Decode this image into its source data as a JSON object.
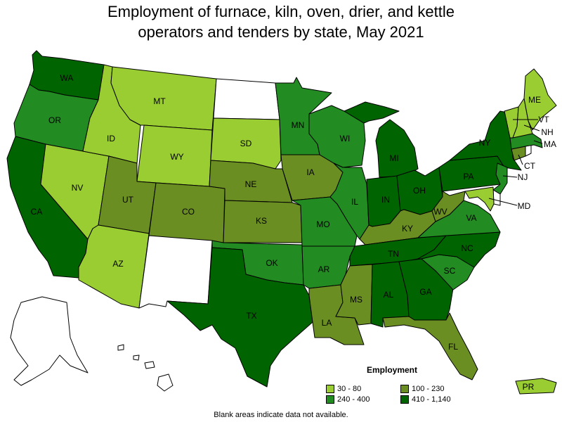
{
  "title_line1": "Employment of furnace, kiln, oven, drier, and kettle",
  "title_line2": "operators and tenders by state, May 2021",
  "colors": {
    "c1": "#9acd32",
    "c2": "#228b22",
    "c3": "#6b8e23",
    "c4": "#006400",
    "nodata": "#ffffff"
  },
  "legend": {
    "title": "Employment",
    "items": [
      {
        "label": "30 - 80",
        "color": "#9acd32"
      },
      {
        "label": "240 - 400",
        "color": "#228b22"
      },
      {
        "label": "100 - 230",
        "color": "#6b8e23"
      },
      {
        "label": "410 - 1,140",
        "color": "#006400"
      }
    ]
  },
  "footnote": "Blank areas indicate data not available.",
  "states": {
    "WA": "410 - 1,140",
    "OR": "240 - 400",
    "CA": "410 - 1,140",
    "NV": "30 - 80",
    "ID": "30 - 80",
    "MT": "30 - 80",
    "WY": "30 - 80",
    "UT": "100 - 230",
    "CO": "100 - 230",
    "AZ": "30 - 80",
    "NM": "",
    "ND": "",
    "SD": "30 - 80",
    "NE": "100 - 230",
    "KS": "100 - 230",
    "OK": "240 - 400",
    "TX": "410 - 1,140",
    "MN": "240 - 400",
    "IA": "100 - 230",
    "MO": "240 - 400",
    "AR": "240 - 400",
    "LA": "100 - 230",
    "WI": "240 - 400",
    "IL": "240 - 400",
    "MI": "410 - 1,140",
    "IN": "410 - 1,140",
    "OH": "410 - 1,140",
    "KY": "100 - 230",
    "TN": "410 - 1,140",
    "MS": "100 - 230",
    "AL": "410 - 1,140",
    "GA": "410 - 1,140",
    "FL": "100 - 230",
    "SC": "240 - 400",
    "NC": "410 - 1,140",
    "VA": "240 - 400",
    "WV": "100 - 230",
    "PA": "410 - 1,140",
    "NY": "410 - 1,140",
    "NJ": "240 - 400",
    "DE": "",
    "MD": "30 - 80",
    "CT": "100 - 230",
    "RI": "",
    "MA": "240 - 400",
    "VT": "30 - 80",
    "NH": "30 - 80",
    "ME": "30 - 80",
    "AK": "",
    "HI": "",
    "PR": "30 - 80"
  }
}
